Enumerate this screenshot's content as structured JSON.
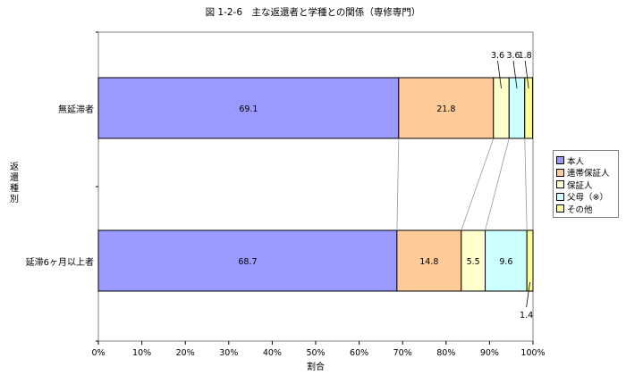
{
  "chart_data": {
    "type": "bar",
    "orientation": "horizontal-stacked-100",
    "title": "図 1-2-6　主な返還者と学種との関係（専修専門）",
    "xlabel": "割合",
    "ylabel": "返還種別",
    "xlim": [
      0,
      100
    ],
    "xticks": [
      "0%",
      "10%",
      "20%",
      "30%",
      "40%",
      "50%",
      "60%",
      "70%",
      "80%",
      "90%",
      "100%"
    ],
    "categories": [
      "無延滞者",
      "延滞6ヶ月以上者"
    ],
    "series": [
      {
        "name": "本人",
        "color": "#9999ff",
        "values": [
          69.1,
          68.7
        ],
        "labels": [
          "69.1",
          "68.7"
        ]
      },
      {
        "name": "連帯保証人",
        "color": "#ffcc99",
        "values": [
          21.8,
          14.8
        ],
        "labels": [
          "21.8",
          "14.8"
        ]
      },
      {
        "name": "保証人",
        "color": "#ffffcc",
        "values": [
          3.6,
          5.5
        ],
        "labels": [
          "3.6",
          "5.5"
        ]
      },
      {
        "name": "父母（※）",
        "color": "#ccffff",
        "values": [
          3.6,
          9.6
        ],
        "labels": [
          "3.6",
          "9.6"
        ]
      },
      {
        "name": "その他",
        "color": "#ffff99",
        "values": [
          1.8,
          1.4
        ],
        "labels": [
          "1.8",
          "1.4"
        ]
      }
    ],
    "series_lines": true,
    "grid": false,
    "legend": "right"
  }
}
